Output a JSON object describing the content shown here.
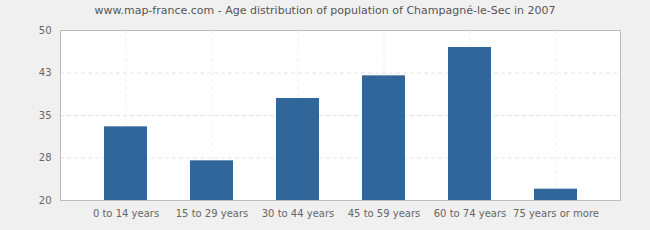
{
  "chart_data": {
    "type": "bar",
    "title": "www.map-france.com - Age distribution of population of Champagné-le-Sec in 2007",
    "categories": [
      "0 to 14 years",
      "15 to 29 years",
      "30 to 44 years",
      "45 to 59 years",
      "60 to 74 years",
      "75 years or more"
    ],
    "values": [
      33,
      27,
      38,
      42,
      47,
      22
    ],
    "color": "#31669a",
    "ylim": [
      20,
      50
    ],
    "yticks": [
      20,
      {
        "value": 27.5,
        "label": "28"
      },
      35,
      {
        "value": 42.5,
        "label": "43"
      },
      50
    ],
    "grid": true
  }
}
